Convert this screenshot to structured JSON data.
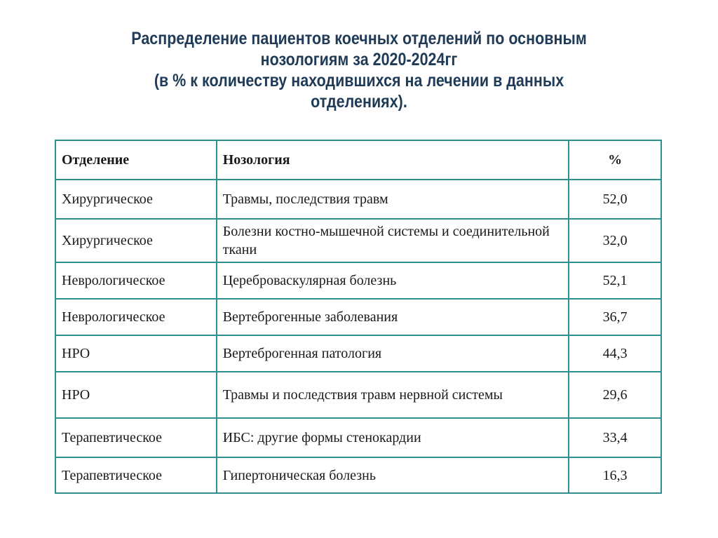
{
  "header": {
    "title_lines": [
      "Распределение пациентов коечных отделений по основным",
      "нозологиям за 2020-2024гг",
      "(в % к количеству находившихся на лечении в данных",
      "отделениях)."
    ]
  },
  "table": {
    "columns": [
      "Отделение",
      "Нозология",
      "%"
    ],
    "rows": [
      [
        "Хирургическое",
        "Травмы, последствия травм",
        "52,0"
      ],
      [
        "Хирургическое",
        "Болезни костно-мышечной системы и соединительной ткани",
        "32,0"
      ],
      [
        "Неврологическое",
        "Цереброваскулярная болезнь",
        "52,1"
      ],
      [
        "Неврологическое",
        "Вертеброгенные  заболевания",
        "36,7"
      ],
      [
        "НРО",
        "Вертеброгенная патология",
        "44,3"
      ],
      [
        "НРО",
        "Травмы и последствия травм нервной системы",
        "29,6"
      ],
      [
        "Терапевтическое",
        "ИБС: другие формы стенокардии",
        "33,4"
      ],
      [
        "Терапевтическое",
        "Гипертоническая болезнь",
        "16,3"
      ]
    ]
  }
}
